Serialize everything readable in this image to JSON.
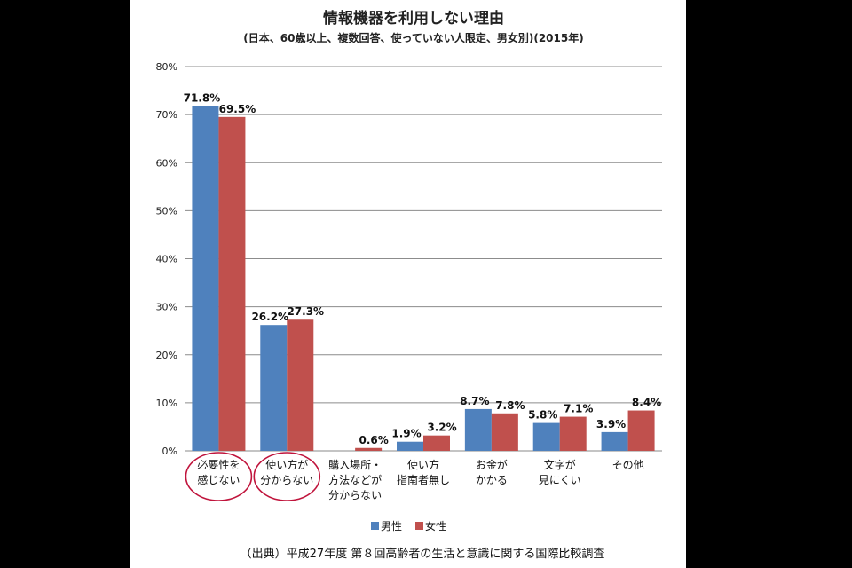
{
  "chart_data": {
    "type": "bar",
    "title": "情報機器を利用しない理由",
    "subtitle": "(日本、60歳以上、複数回答、使っていない人限定、男女別)(2015年)",
    "categories": [
      [
        "必要性を",
        "感じない"
      ],
      [
        "使い方が",
        "分からない"
      ],
      [
        "購入場所・",
        "方法などが",
        "分からない"
      ],
      [
        "使い方",
        "指南者無し"
      ],
      [
        "お金が",
        "かかる"
      ],
      [
        "文字が",
        "見にくい"
      ],
      [
        "その他"
      ]
    ],
    "series": [
      {
        "name": "男性",
        "color": "#4f81bd",
        "values": [
          71.8,
          26.2,
          null,
          1.9,
          8.7,
          5.8,
          3.9
        ],
        "labels": [
          "71.8%",
          "26.2%",
          "",
          "1.9%",
          "8.7%",
          "5.8%",
          "3.9%"
        ]
      },
      {
        "name": "女性",
        "color": "#c0504d",
        "values": [
          69.5,
          27.3,
          0.6,
          3.2,
          7.8,
          7.1,
          8.4
        ],
        "labels": [
          "69.5%",
          "27.3%",
          "0.6%",
          "3.2%",
          "7.8%",
          "7.1%",
          "8.4%"
        ]
      }
    ],
    "y_ticks": [
      "0%",
      "10%",
      "20%",
      "30%",
      "40%",
      "50%",
      "60%",
      "70%",
      "80%"
    ],
    "ylim": [
      0,
      80
    ],
    "grid": true,
    "legend_position": "bottom",
    "highlighted_categories": [
      0,
      1
    ],
    "highlight_color": "#c0143c"
  },
  "source": "（出典）平成27年度 第８回高齢者の生活と意識に関する国際比較調査"
}
